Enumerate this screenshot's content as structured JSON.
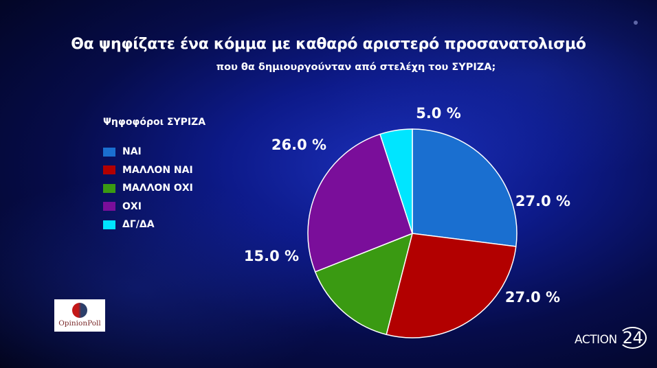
{
  "chart_data": {
    "type": "pie",
    "title": "Θα ψηφίζατε ένα κόμμα με καθαρό αριστερό προσανατολισμό",
    "subtitle": "που θα δημιουργούνταν από στελέχη του ΣΥΡΙΖΑ;",
    "legend_title": "Ψηφοφόροι ΣΥΡΙΖΑ",
    "legend_placement": "left",
    "start": "top, clockwise",
    "slices": [
      {
        "name": "ΝΑΙ",
        "value": 27.0,
        "label": "27.0 %",
        "color": "#1a6fd0"
      },
      {
        "name": "ΜΑΛΛΟΝ ΝΑΙ",
        "value": 27.0,
        "label": "27.0 %",
        "color": "#b20000"
      },
      {
        "name": "ΜΑΛΛΟΝ ΟΧΙ",
        "value": 15.0,
        "label": "15.0 %",
        "color": "#3a9a12"
      },
      {
        "name": "ΟΧΙ",
        "value": 26.0,
        "label": "26.0 %",
        "color": "#7a0e9a"
      },
      {
        "name": "ΔΓ/ΔΑ",
        "value": 5.0,
        "label": "5.0 %",
        "color": "#00e5ff"
      }
    ]
  },
  "logos": {
    "pollster": "OpinionPoll",
    "channel": "ACTION",
    "channel_num": "24"
  }
}
